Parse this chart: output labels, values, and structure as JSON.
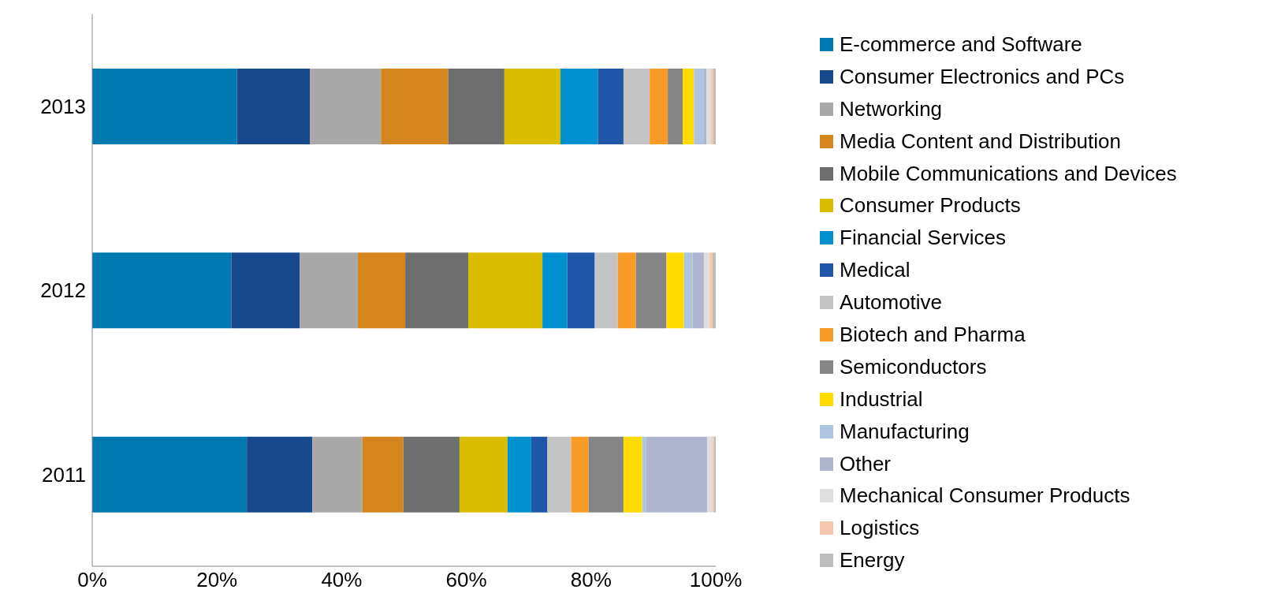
{
  "chart_data": {
    "type": "bar",
    "orientation": "horizontal",
    "stacked": true,
    "categories": [
      "2013",
      "2012",
      "2011"
    ],
    "xlim": [
      0,
      100
    ],
    "xticks": [
      {
        "value": 0,
        "label": "0%"
      },
      {
        "value": 20,
        "label": "20%"
      },
      {
        "value": 40,
        "label": "40%"
      },
      {
        "value": 60,
        "label": "60%"
      },
      {
        "value": 80,
        "label": "80%"
      },
      {
        "value": 100,
        "label": "100%"
      }
    ],
    "grid": false,
    "legend": "right",
    "series": [
      {
        "name": "E-commerce and Software",
        "color": "#0079b0",
        "values": [
          23.2,
          22.3,
          24.8
        ]
      },
      {
        "name": "Consumer Electronics and PCs",
        "color": "#17498c",
        "values": [
          11.7,
          11.0,
          10.5
        ]
      },
      {
        "name": "Networking",
        "color": "#a9a9a9",
        "values": [
          11.4,
          9.3,
          8.0
        ]
      },
      {
        "name": "Media Content and Distribution",
        "color": "#d5851d",
        "values": [
          10.8,
          7.6,
          6.6
        ]
      },
      {
        "name": "Mobile Communications and Devices",
        "color": "#6e6e6e",
        "values": [
          9.0,
          10.1,
          9.0
        ]
      },
      {
        "name": "Consumer Products",
        "color": "#dbbd00",
        "values": [
          9.0,
          11.9,
          7.7
        ]
      },
      {
        "name": "Financial Services",
        "color": "#0090cf",
        "values": [
          6.0,
          4.0,
          3.8
        ]
      },
      {
        "name": "Medical",
        "color": "#1f56a8",
        "values": [
          4.1,
          4.4,
          2.6
        ]
      },
      {
        "name": "Automotive",
        "color": "#c4c4c4",
        "values": [
          4.2,
          3.7,
          3.8
        ]
      },
      {
        "name": "Biotech and Pharma",
        "color": "#f89b27",
        "values": [
          2.9,
          2.9,
          2.8
        ]
      },
      {
        "name": "Semiconductors",
        "color": "#858585",
        "values": [
          2.4,
          4.9,
          5.6
        ]
      },
      {
        "name": "Industrial",
        "color": "#ffdb00",
        "values": [
          1.8,
          2.8,
          3.0
        ]
      },
      {
        "name": "Manufacturing",
        "color": "#adc4e0",
        "values": [
          1.6,
          1.4,
          0.6
        ]
      },
      {
        "name": "Other",
        "color": "#afb5cf",
        "values": [
          0.4,
          1.8,
          9.8
        ]
      },
      {
        "name": "Mechanical Consumer Products",
        "color": "#dedede",
        "values": [
          0.7,
          0.9,
          0.8
        ]
      },
      {
        "name": "Logistics",
        "color": "#f7c7ad",
        "values": [
          0.4,
          0.5,
          0.3
        ]
      },
      {
        "name": "Energy",
        "color": "#bdbdbd",
        "values": [
          0.4,
          0.5,
          0.3
        ]
      }
    ]
  }
}
